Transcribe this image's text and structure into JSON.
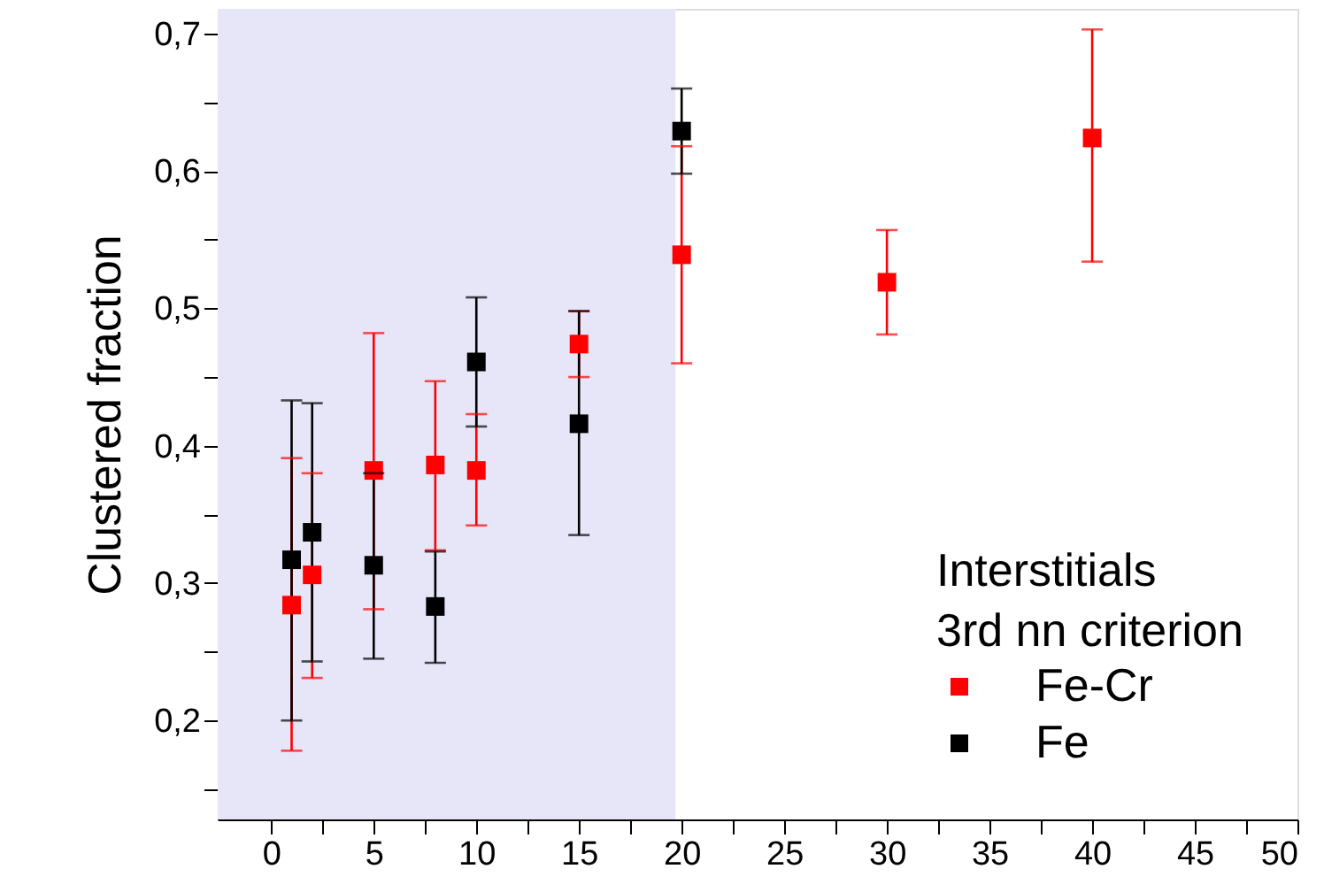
{
  "chart_data": {
    "type": "scatter",
    "ylabel": "Clustered fraction",
    "legend_title": "Interstitials\n3rd nn criterion",
    "legend": "bottom right",
    "marker": "square",
    "grid": false,
    "xlim": [
      -2.6,
      50
    ],
    "xticks": [
      0,
      {
        "value": 2.5,
        "label": null
      },
      5,
      {
        "value": 7.5,
        "label": null
      },
      10,
      {
        "value": 12.5,
        "label": null
      },
      15,
      {
        "value": 17.5,
        "label": null
      },
      20,
      {
        "value": 22.5,
        "label": null
      },
      25,
      {
        "value": 27.5,
        "label": null
      },
      30,
      {
        "value": 32.5,
        "label": null
      },
      35,
      {
        "value": 37.5,
        "label": null
      },
      40,
      {
        "value": 42.5,
        "label": null
      },
      45,
      {
        "value": 47.5,
        "label": null
      },
      50
    ],
    "ylim": [
      0.128,
      0.718
    ],
    "yticks": [
      {
        "value": 0.15,
        "label": null
      },
      {
        "value": 0.2,
        "label": "0,2"
      },
      {
        "value": 0.25,
        "label": null
      },
      {
        "value": 0.3,
        "label": "0,3"
      },
      {
        "value": 0.35,
        "label": null
      },
      {
        "value": 0.4,
        "label": "0,4"
      },
      {
        "value": 0.45,
        "label": null
      },
      {
        "value": 0.5,
        "label": "0,5"
      },
      {
        "value": 0.55,
        "label": null
      },
      {
        "value": 0.6,
        "label": "0,6"
      },
      {
        "value": 0.65,
        "label": null
      },
      {
        "value": 0.7,
        "label": "0,7"
      }
    ],
    "bands": [
      {
        "axis": "x",
        "from": -2.6,
        "to": 19.7,
        "color": "#e6e6f8"
      }
    ],
    "series": [
      {
        "name": "Fe-Cr",
        "color": "#ff0000",
        "x": [
          1,
          2,
          5,
          8,
          10,
          15,
          20,
          30,
          40
        ],
        "values": [
          0.284,
          0.306,
          0.382,
          0.386,
          0.382,
          0.474,
          0.539,
          0.519,
          0.624
        ],
        "errors": [
          [
            0.178,
            0.391
          ],
          [
            0.231,
            0.38
          ],
          [
            0.281,
            0.482
          ],
          [
            0.324,
            0.447
          ],
          [
            0.342,
            0.423
          ],
          [
            0.45,
            0.498
          ],
          [
            0.46,
            0.618
          ],
          [
            0.481,
            0.557
          ],
          [
            0.534,
            0.703
          ]
        ]
      },
      {
        "name": "Fe",
        "color": "#000000",
        "x": [
          1,
          2,
          5,
          8,
          10,
          15,
          20
        ],
        "values": [
          0.317,
          0.337,
          0.313,
          0.283,
          0.461,
          0.416,
          0.629
        ],
        "errors": [
          [
            0.2,
            0.433
          ],
          [
            0.243,
            0.431
          ],
          [
            0.245,
            0.38
          ],
          [
            0.242,
            0.323
          ],
          [
            0.414,
            0.508
          ],
          [
            0.335,
            0.498
          ],
          [
            0.598,
            0.66
          ]
        ]
      }
    ]
  }
}
